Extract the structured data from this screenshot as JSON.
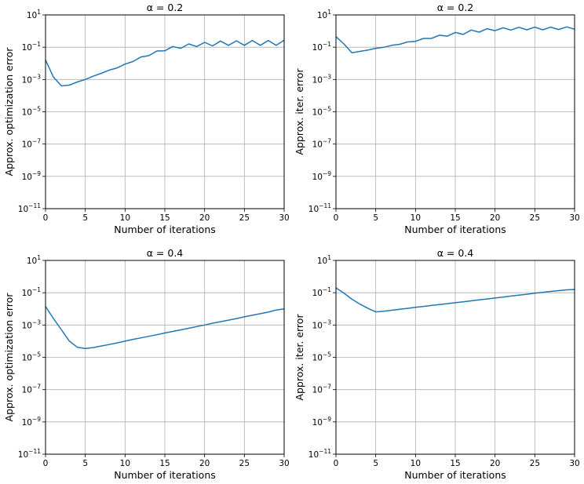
{
  "chart_data": [
    {
      "type": "line",
      "title": "α = 0.2",
      "xlabel": "Number of iterations",
      "ylabel": "Approx. optimization error",
      "xlim": [
        0,
        30
      ],
      "ylim": [
        1e-11,
        10
      ],
      "yscale": "log",
      "grid": true,
      "xticks": [
        "0",
        "5",
        "10",
        "15",
        "20",
        "25",
        "30"
      ],
      "yticks": [
        "10^-11",
        "10^-9",
        "10^-7",
        "10^-5",
        "10^-3",
        "10^-1",
        "10^1"
      ],
      "series_color": "#1f77b4",
      "series": [
        {
          "x": [
            0,
            1,
            2,
            3,
            4,
            5,
            6,
            7,
            8,
            9,
            10,
            11,
            12,
            13,
            14,
            15,
            16,
            17,
            18,
            19,
            20,
            21,
            22,
            23,
            24,
            25,
            26,
            27,
            28,
            29,
            30
          ],
          "y": [
            0.016,
            0.0014,
            0.0004,
            0.00045,
            0.0007,
            0.001,
            0.0016,
            0.0024,
            0.0038,
            0.0052,
            0.009,
            0.013,
            0.025,
            0.03,
            0.058,
            0.06,
            0.11,
            0.085,
            0.16,
            0.11,
            0.2,
            0.12,
            0.24,
            0.13,
            0.25,
            0.13,
            0.26,
            0.13,
            0.26,
            0.13,
            0.27
          ]
        }
      ]
    },
    {
      "type": "line",
      "title": "α = 0.2",
      "xlabel": "Number of iterations",
      "ylabel": "Approx. iter. error",
      "xlim": [
        0,
        30
      ],
      "ylim": [
        1e-11,
        10
      ],
      "yscale": "log",
      "grid": true,
      "xticks": [
        "0",
        "5",
        "10",
        "15",
        "20",
        "25",
        "30"
      ],
      "yticks": [
        "10^-11",
        "10^-9",
        "10^-7",
        "10^-5",
        "10^-3",
        "10^-1",
        "10^1"
      ],
      "series_color": "#1f77b4",
      "series": [
        {
          "x": [
            0,
            1,
            2,
            3,
            4,
            5,
            6,
            7,
            8,
            9,
            10,
            11,
            12,
            13,
            14,
            15,
            16,
            17,
            18,
            19,
            20,
            21,
            22,
            23,
            24,
            25,
            26,
            27,
            28,
            29,
            30
          ],
          "y": [
            0.45,
            0.16,
            0.045,
            0.055,
            0.066,
            0.085,
            0.098,
            0.13,
            0.15,
            0.21,
            0.23,
            0.35,
            0.35,
            0.55,
            0.48,
            0.82,
            0.62,
            1.15,
            0.85,
            1.4,
            1.05,
            1.6,
            1.15,
            1.7,
            1.2,
            1.75,
            1.2,
            1.75,
            1.25,
            1.8,
            1.3
          ]
        }
      ]
    },
    {
      "type": "line",
      "title": "α = 0.4",
      "xlabel": "Number of iterations",
      "ylabel": "Approx. optimization error",
      "xlim": [
        0,
        30
      ],
      "ylim": [
        1e-11,
        10
      ],
      "yscale": "log",
      "grid": true,
      "xticks": [
        "0",
        "5",
        "10",
        "15",
        "20",
        "25",
        "30"
      ],
      "yticks": [
        "10^-11",
        "10^-9",
        "10^-7",
        "10^-5",
        "10^-3",
        "10^-1",
        "10^1"
      ],
      "series_color": "#1f77b4",
      "series": [
        {
          "x": [
            0,
            1,
            2,
            3,
            4,
            5,
            6,
            7,
            8,
            9,
            10,
            11,
            12,
            13,
            14,
            15,
            16,
            17,
            18,
            19,
            20,
            21,
            22,
            23,
            24,
            25,
            26,
            27,
            28,
            29,
            30
          ],
          "y": [
            0.014,
            0.0025,
            0.0005,
            0.0001,
            4.2e-05,
            3.5e-05,
            4e-05,
            5e-05,
            6.2e-05,
            7.8e-05,
            0.0001,
            0.00013,
            0.00016,
            0.0002,
            0.00025,
            0.00032,
            0.0004,
            0.0005,
            0.00063,
            0.0008,
            0.001,
            0.0013,
            0.0016,
            0.002,
            0.0025,
            0.0032,
            0.004,
            0.005,
            0.0063,
            0.0085,
            0.01
          ]
        }
      ]
    },
    {
      "type": "line",
      "title": "α = 0.4",
      "xlabel": "Number of iterations",
      "ylabel": "Approx. iter. error",
      "xlim": [
        0,
        30
      ],
      "ylim": [
        1e-11,
        10
      ],
      "yscale": "log",
      "grid": true,
      "xticks": [
        "0",
        "5",
        "10",
        "15",
        "20",
        "25",
        "30"
      ],
      "yticks": [
        "10^-11",
        "10^-9",
        "10^-7",
        "10^-5",
        "10^-3",
        "10^-1",
        "10^1"
      ],
      "series_color": "#1f77b4",
      "series": [
        {
          "x": [
            0,
            1,
            2,
            3,
            4,
            5,
            6,
            7,
            8,
            9,
            10,
            11,
            12,
            13,
            14,
            15,
            16,
            17,
            18,
            19,
            20,
            21,
            22,
            23,
            24,
            25,
            26,
            27,
            28,
            29,
            30
          ],
          "y": [
            0.2,
            0.095,
            0.04,
            0.02,
            0.011,
            0.0065,
            0.0072,
            0.0082,
            0.0094,
            0.0108,
            0.0124,
            0.0142,
            0.0162,
            0.0185,
            0.021,
            0.024,
            0.0275,
            0.0315,
            0.036,
            0.041,
            0.047,
            0.054,
            0.062,
            0.071,
            0.081,
            0.093,
            0.106,
            0.12,
            0.135,
            0.15,
            0.16
          ]
        }
      ]
    }
  ]
}
